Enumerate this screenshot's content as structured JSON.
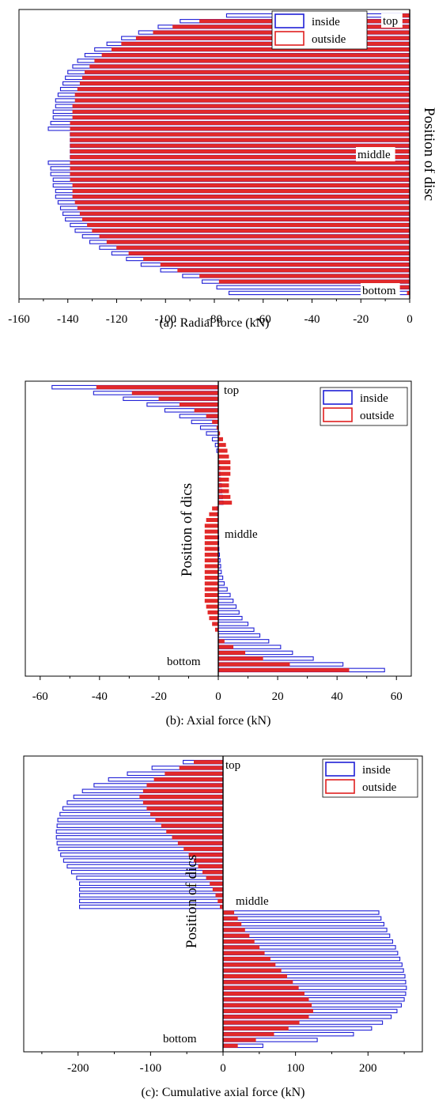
{
  "colors": {
    "inside": "#1f1fd6",
    "outside": "#e01f1f",
    "axis": "#000000"
  },
  "chart_data": [
    {
      "type": "bar",
      "orientation": "horizontal",
      "caption": "(a): Radial force (kN)",
      "ylabel": "Position of disc",
      "annotations": [
        "top",
        "middle",
        "bottom"
      ],
      "xlim": [
        -160,
        0
      ],
      "xticks": [
        -160,
        -140,
        -120,
        -100,
        -80,
        -60,
        -40,
        -20,
        0
      ],
      "legend": {
        "position": "top-right",
        "entries": [
          "inside",
          "outside"
        ]
      },
      "n_bars": 50,
      "series": [
        {
          "name": "inside",
          "values": [
            -75,
            -94,
            -103,
            -111,
            -118,
            -124,
            -129,
            -133,
            -136,
            -138,
            -140,
            -141,
            -142,
            -143,
            -144,
            -145,
            -145,
            -146,
            -146,
            -147,
            -148,
            -139,
            -139,
            -139,
            -139,
            -139,
            -148,
            -147,
            -147,
            -146,
            -146,
            -145,
            -145,
            -144,
            -143,
            -142,
            -141,
            -139,
            -137,
            -134,
            -131,
            -127,
            -122,
            -116,
            -110,
            -102,
            -93,
            -85,
            -79,
            -74
          ]
        },
        {
          "name": "outside",
          "values": [
            -10,
            -86,
            -97,
            -105,
            -112,
            -118,
            -122,
            -126,
            -129,
            -131,
            -133,
            -134,
            -135,
            -136,
            -137,
            -137,
            -138,
            -138,
            -138,
            -139,
            -139,
            -139,
            -139,
            -139,
            -139,
            -139,
            -139,
            -139,
            -139,
            -139,
            -138,
            -138,
            -138,
            -137,
            -136,
            -135,
            -134,
            -132,
            -130,
            -127,
            -124,
            -120,
            -115,
            -109,
            -102,
            -95,
            -86,
            -78,
            -20,
            -1
          ]
        }
      ]
    },
    {
      "type": "bar",
      "orientation": "horizontal",
      "caption": "(b): Axial force (kN)",
      "ylabel": "Position of dics",
      "annotations": [
        "top",
        "middle",
        "bottom"
      ],
      "xlim": [
        -65,
        65
      ],
      "xticks": [
        -60,
        -40,
        -20,
        0,
        20,
        40,
        60
      ],
      "legend": {
        "position": "top-right",
        "entries": [
          "inside",
          "outside"
        ]
      },
      "n_bars": 50,
      "series": [
        {
          "name": "inside",
          "values": [
            -56,
            -42,
            -32,
            -24,
            -18,
            -13,
            -9,
            -6,
            -4,
            -2,
            -1,
            -0.5,
            0,
            0.3,
            0.5,
            0.6,
            0.8,
            1,
            1.2,
            1.4,
            1.6,
            -0.5,
            -0.4,
            -0.3,
            -0.2,
            -0.1,
            0,
            0,
            0.2,
            0.4,
            0.6,
            0.8,
            1,
            1.5,
            2,
            3,
            4,
            5,
            6,
            7,
            8,
            10,
            12,
            14,
            17,
            21,
            25,
            32,
            42,
            56
          ]
        },
        {
          "name": "outside",
          "values": [
            -41,
            -29,
            -20,
            -13,
            -8,
            -4,
            -2,
            -0.5,
            0.5,
            1.5,
            2.5,
            3,
            3.5,
            4,
            4,
            4,
            3.5,
            3.5,
            3.5,
            4,
            4.5,
            -2,
            -3,
            -4,
            -4.5,
            -4.5,
            -4.5,
            -4.5,
            -4.5,
            -4.5,
            -4.5,
            -4.5,
            -4.5,
            -4.5,
            -4.5,
            -4.5,
            -4.5,
            -4.5,
            -4,
            -3.5,
            -3,
            -2,
            -1,
            0,
            2,
            5,
            9,
            15,
            24,
            44
          ]
        }
      ]
    },
    {
      "type": "bar",
      "orientation": "horizontal",
      "caption": "(c): Cumulative axial force (kN)",
      "ylabel": "Position of dics",
      "annotations": [
        "top",
        "middle",
        "bottom"
      ],
      "xlim": [
        -275,
        275
      ],
      "xticks": [
        -200,
        -100,
        0,
        100,
        200
      ],
      "legend": {
        "position": "top-right",
        "entries": [
          "inside",
          "outside"
        ]
      },
      "n_bars": 50,
      "series": [
        {
          "name": "inside",
          "values": [
            -55,
            -98,
            -132,
            -158,
            -178,
            -194,
            -206,
            -215,
            -221,
            -225,
            -228,
            -229,
            -230,
            -230,
            -229,
            -227,
            -224,
            -220,
            -215,
            -209,
            -202,
            -198,
            -198,
            -198,
            -198,
            -198,
            215,
            218,
            222,
            226,
            230,
            234,
            238,
            241,
            244,
            247,
            249,
            251,
            252,
            253,
            252,
            250,
            246,
            240,
            232,
            220,
            205,
            180,
            130,
            55
          ]
        },
        {
          "name": "outside",
          "values": [
            -40,
            -60,
            -80,
            -95,
            -105,
            -110,
            -115,
            -110,
            -105,
            -100,
            -93,
            -85,
            -78,
            -70,
            -62,
            -54,
            -47,
            -40,
            -34,
            -28,
            -23,
            -18,
            -14,
            -10,
            -7,
            -4,
            15,
            20,
            25,
            30,
            36,
            43,
            50,
            57,
            65,
            72,
            80,
            88,
            96,
            104,
            112,
            118,
            122,
            124,
            118,
            105,
            90,
            70,
            45,
            20
          ]
        }
      ]
    }
  ]
}
